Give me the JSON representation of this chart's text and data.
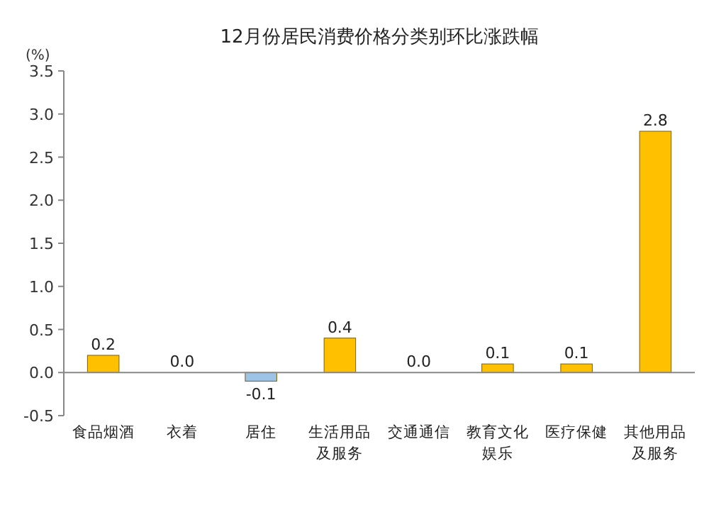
{
  "chart_data": {
    "type": "bar",
    "title": "12月份居民消费价格分类别环比涨跌幅",
    "ylabel": "(%)",
    "categories": [
      "食品烟酒",
      "衣着",
      "居住",
      "生活用品及服务",
      "交通通信",
      "教育文化娱乐",
      "医疗保健",
      "其他用品及服务"
    ],
    "values": [
      0.2,
      0.0,
      -0.1,
      0.4,
      0.0,
      0.1,
      0.1,
      2.8
    ],
    "colors": [
      "#ffc000",
      "#ffc000",
      "#9dc3e6",
      "#ffc000",
      "#ffc000",
      "#ffc000",
      "#ffc000",
      "#ffc000"
    ],
    "value_labels": [
      "0.2",
      "0.0",
      "-0.1",
      "0.4",
      "0.0",
      "0.1",
      "0.1",
      "2.8"
    ],
    "ylim": [
      -0.5,
      3.5
    ],
    "yticks": [
      {
        "value": -0.5,
        "label": "-0.5"
      },
      {
        "value": 0,
        "label": "0.0"
      },
      {
        "value": 0.5,
        "label": "0.5"
      },
      {
        "value": 1,
        "label": "1.0"
      },
      {
        "value": 1.5,
        "label": "1.5"
      },
      {
        "value": 2,
        "label": "2.0"
      },
      {
        "value": 2.5,
        "label": "2.5"
      },
      {
        "value": 3,
        "label": "3.0"
      },
      {
        "value": 3.5,
        "label": "3.5"
      }
    ]
  }
}
